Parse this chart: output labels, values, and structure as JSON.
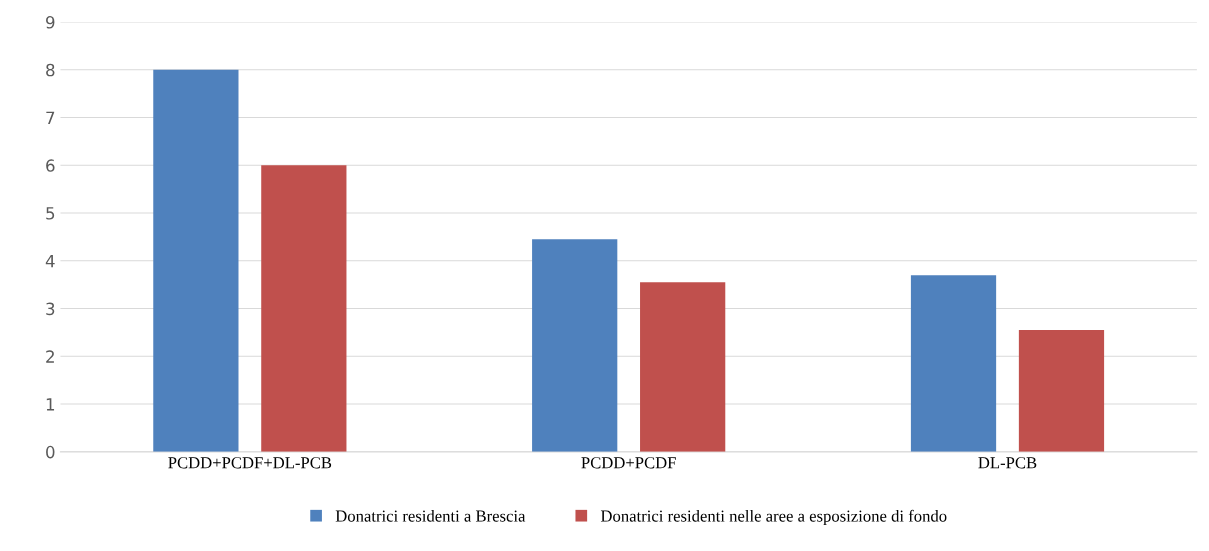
{
  "chart_data": {
    "type": "bar",
    "categories": [
      "PCDD+PCDF+DL-PCB",
      "PCDD+PCDF",
      "DL-PCB"
    ],
    "series": [
      {
        "name": "Donatrici residenti a Brescia",
        "color": "#4f81bd",
        "values": [
          8.0,
          4.45,
          3.7
        ]
      },
      {
        "name": "Donatrici residenti nelle aree a esposizione di fondo",
        "color": "#c0504d",
        "values": [
          6.0,
          3.55,
          2.55
        ]
      }
    ],
    "ylim": [
      0,
      9
    ],
    "yticks": [
      0,
      1,
      2,
      3,
      4,
      5,
      6,
      7,
      8,
      9
    ],
    "grid": "y",
    "legend": "bottom"
  }
}
